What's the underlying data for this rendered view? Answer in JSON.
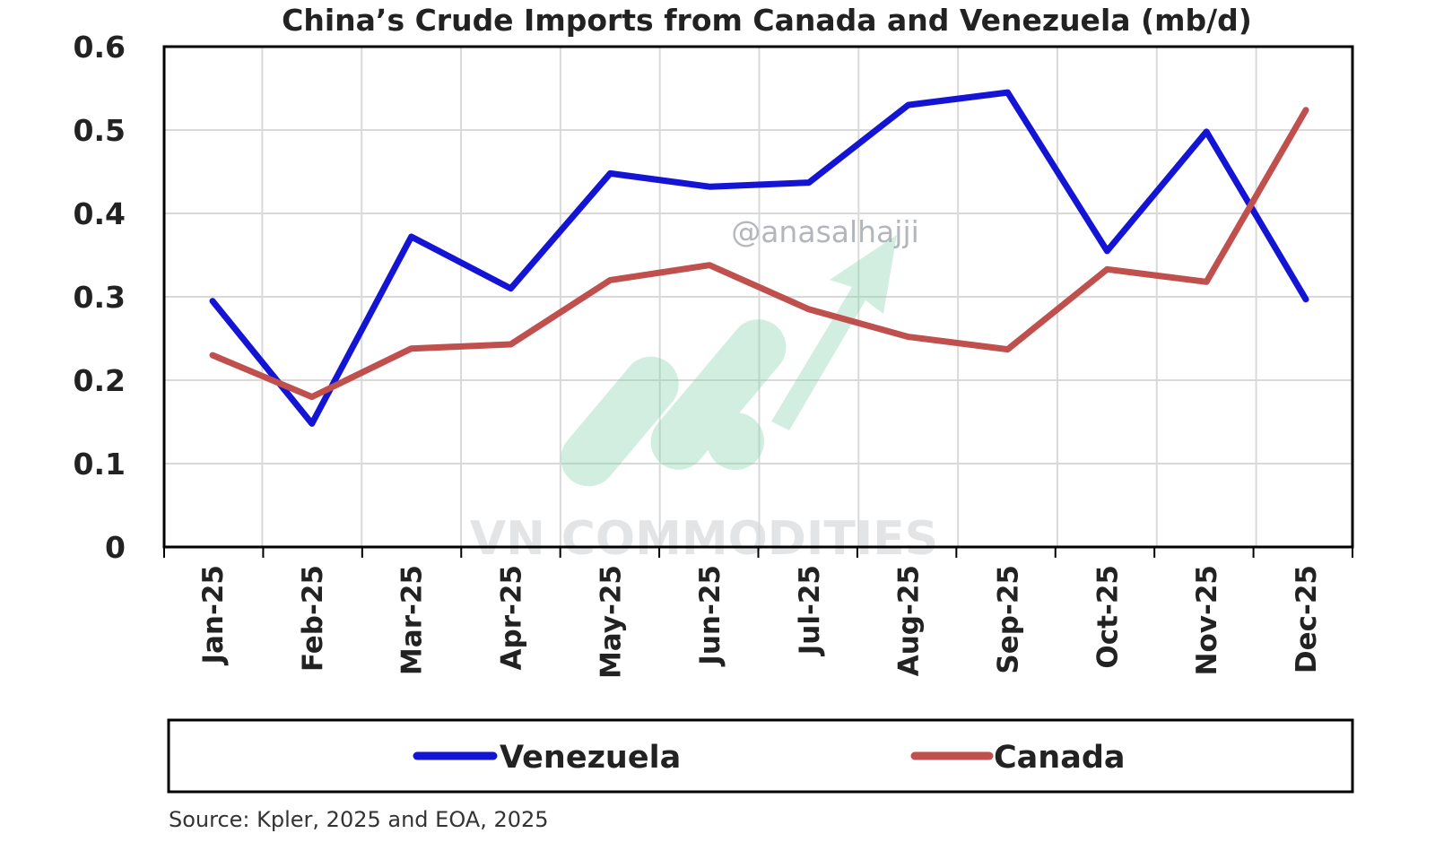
{
  "chart_data": {
    "type": "line",
    "title": "China’s Crude Imports from Canada and Venezuela (mb/d)",
    "categories": [
      "Jan-25",
      "Feb-25",
      "Mar-25",
      "Apr-25",
      "May-25",
      "Jun-25",
      "Jul-25",
      "Aug-25",
      "Sep-25",
      "Oct-25",
      "Nov-25",
      "Dec-25"
    ],
    "ylim": [
      0,
      0.6
    ],
    "yticks": [
      "0",
      "0.1",
      "0.2",
      "0.3",
      "0.4",
      "0.5",
      "0.6"
    ],
    "grid": true,
    "legend_position": "bottom",
    "series": [
      {
        "name": "Venezuela",
        "color": "#1414d4",
        "values": [
          0.295,
          0.148,
          0.372,
          0.31,
          0.448,
          0.432,
          0.437,
          0.53,
          0.545,
          0.355,
          0.498,
          0.297
        ]
      },
      {
        "name": "Canada",
        "color": "#c0504d",
        "values": [
          0.23,
          0.18,
          0.238,
          0.243,
          0.32,
          0.338,
          0.285,
          0.252,
          0.237,
          0.333,
          0.318,
          0.524
        ]
      }
    ],
    "source": "Source: Kpler, 2025 and EOA, 2025"
  },
  "watermark": {
    "handle": "@anasalhajji",
    "brand": "VN COMMODITIES",
    "logo_color": "#7fd1a8"
  }
}
